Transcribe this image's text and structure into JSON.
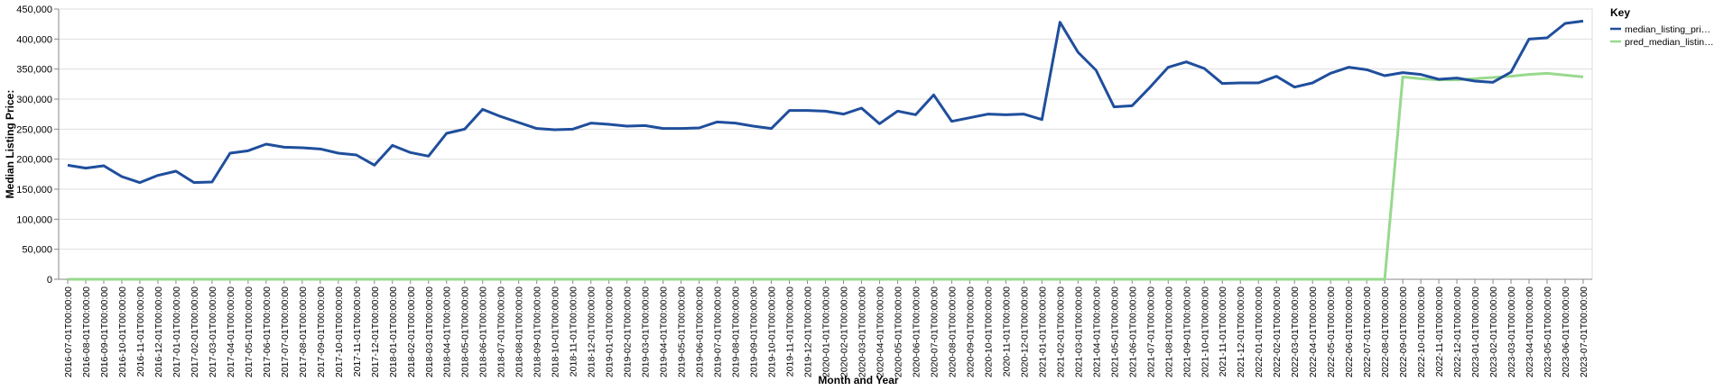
{
  "chart_data": {
    "type": "line",
    "x_label": "Month and Year",
    "y_label": "Median Listing Price:",
    "legend_title": "Key",
    "legend_position": "right",
    "grid": true,
    "categories": [
      "2016-07-01T00:00:00",
      "2016-08-01T00:00:00",
      "2016-09-01T00:00:00",
      "2016-10-01T00:00:00",
      "2016-11-01T00:00:00",
      "2016-12-01T00:00:00",
      "2017-01-01T00:00:00",
      "2017-02-01T00:00:00",
      "2017-03-01T00:00:00",
      "2017-04-01T00:00:00",
      "2017-05-01T00:00:00",
      "2017-06-01T00:00:00",
      "2017-07-01T00:00:00",
      "2017-08-01T00:00:00",
      "2017-09-01T00:00:00",
      "2017-10-01T00:00:00",
      "2017-11-01T00:00:00",
      "2017-12-01T00:00:00",
      "2018-01-01T00:00:00",
      "2018-02-01T00:00:00",
      "2018-03-01T00:00:00",
      "2018-04-01T00:00:00",
      "2018-05-01T00:00:00",
      "2018-06-01T00:00:00",
      "2018-07-01T00:00:00",
      "2018-08-01T00:00:00",
      "2018-09-01T00:00:00",
      "2018-10-01T00:00:00",
      "2018-11-01T00:00:00",
      "2018-12-01T00:00:00",
      "2019-01-01T00:00:00",
      "2019-02-01T00:00:00",
      "2019-03-01T00:00:00",
      "2019-04-01T00:00:00",
      "2019-05-01T00:00:00",
      "2019-06-01T00:00:00",
      "2019-07-01T00:00:00",
      "2019-08-01T00:00:00",
      "2019-09-01T00:00:00",
      "2019-10-01T00:00:00",
      "2019-11-01T00:00:00",
      "2019-12-01T00:00:00",
      "2020-01-01T00:00:00",
      "2020-02-01T00:00:00",
      "2020-03-01T00:00:00",
      "2020-04-01T00:00:00",
      "2020-05-01T00:00:00",
      "2020-06-01T00:00:00",
      "2020-07-01T00:00:00",
      "2020-08-01T00:00:00",
      "2020-09-01T00:00:00",
      "2020-10-01T00:00:00",
      "2020-11-01T00:00:00",
      "2020-12-01T00:00:00",
      "2021-01-01T00:00:00",
      "2021-02-01T00:00:00",
      "2021-03-01T00:00:00",
      "2021-04-01T00:00:00",
      "2021-05-01T00:00:00",
      "2021-06-01T00:00:00",
      "2021-07-01T00:00:00",
      "2021-08-01T00:00:00",
      "2021-09-01T00:00:00",
      "2021-10-01T00:00:00",
      "2021-11-01T00:00:00",
      "2021-12-01T00:00:00",
      "2022-01-01T00:00:00",
      "2022-02-01T00:00:00",
      "2022-03-01T00:00:00",
      "2022-04-01T00:00:00",
      "2022-05-01T00:00:00",
      "2022-06-01T00:00:00",
      "2022-07-01T00:00:00",
      "2022-08-01T00:00:00",
      "2022-09-01T00:00:00",
      "2022-10-01T00:00:00",
      "2022-11-01T00:00:00",
      "2022-12-01T00:00:00",
      "2023-01-01T00:00:00",
      "2023-02-01T00:00:00",
      "2023-03-01T00:00:00",
      "2023-04-01T00:00:00",
      "2023-05-01T00:00:00",
      "2023-06-01T00:00:00",
      "2023-07-01T00:00:00"
    ],
    "series": [
      {
        "name": "median_listing_pri…",
        "color": "#1f4e9c",
        "values": [
          190000,
          185000,
          189000,
          171000,
          161000,
          173000,
          180000,
          161000,
          162000,
          210000,
          214000,
          225000,
          220000,
          219000,
          217000,
          210000,
          207000,
          190000,
          223000,
          211000,
          205000,
          243000,
          250000,
          283000,
          271000,
          261000,
          251000,
          249000,
          250000,
          260000,
          258000,
          255000,
          256000,
          251000,
          251000,
          252000,
          262000,
          260000,
          255000,
          251000,
          281000,
          281000,
          280000,
          275000,
          285000,
          259000,
          280000,
          274000,
          307000,
          263000,
          269000,
          275000,
          274000,
          275000,
          266000,
          428000,
          378000,
          348000,
          287000,
          289000,
          320000,
          353000,
          362000,
          351000,
          326000,
          327000,
          327000,
          338000,
          320000,
          327000,
          343000,
          353000,
          349000,
          339000,
          344000,
          341000,
          333000,
          335000,
          330000,
          328000,
          345000,
          400000,
          402000,
          426000,
          430000
        ]
      },
      {
        "name": "pred_median_listin…",
        "color": "#98d98e",
        "values": [
          0,
          0,
          0,
          0,
          0,
          0,
          0,
          0,
          0,
          0,
          0,
          0,
          0,
          0,
          0,
          0,
          0,
          0,
          0,
          0,
          0,
          0,
          0,
          0,
          0,
          0,
          0,
          0,
          0,
          0,
          0,
          0,
          0,
          0,
          0,
          0,
          0,
          0,
          0,
          0,
          0,
          0,
          0,
          0,
          0,
          0,
          0,
          0,
          0,
          0,
          0,
          0,
          0,
          0,
          0,
          0,
          0,
          0,
          0,
          0,
          0,
          0,
          0,
          0,
          0,
          0,
          0,
          0,
          0,
          0,
          0,
          0,
          0,
          0,
          337000,
          334000,
          332000,
          332000,
          334000,
          336000,
          338000,
          341000,
          343000,
          340000,
          337000
        ]
      }
    ],
    "ylim": [
      0,
      450000
    ],
    "yticks": [
      0,
      {
        "value": 50000,
        "label": "50,000"
      },
      {
        "value": 100000,
        "label": "100,000"
      },
      {
        "value": 150000,
        "label": "150,000"
      },
      {
        "value": 200000,
        "label": "200,000"
      },
      {
        "value": 250000,
        "label": "250,000"
      },
      {
        "value": 300000,
        "label": "300,000"
      },
      {
        "value": 350000,
        "label": "350,000"
      },
      {
        "value": 400000,
        "label": "400,000"
      },
      {
        "value": 450000,
        "label": "450,000"
      }
    ]
  }
}
